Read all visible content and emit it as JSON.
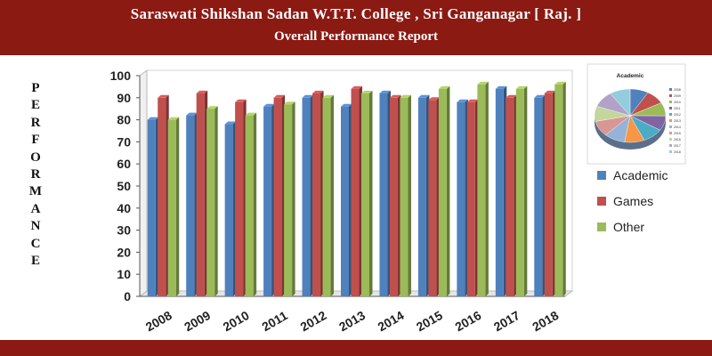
{
  "header": {
    "title": "Saraswati Shikshan Sadan W.T.T. College , Sri Ganganagar [ Raj. ]",
    "subtitle": "Overall Performance Report"
  },
  "side_label": [
    "P",
    "E",
    "R",
    "F",
    "O",
    "R",
    "M",
    "A",
    "N",
    "C",
    "E"
  ],
  "colors": {
    "header_bg": "#8b1a13",
    "academic": "#4f81bd",
    "games": "#c0504d",
    "other": "#9bbb59"
  },
  "chart_data": [
    {
      "type": "bar",
      "title": "",
      "xlabel": "",
      "ylabel": "",
      "categories": [
        "2008",
        "2009",
        "2010",
        "2011",
        "2012",
        "2013",
        "2014",
        "2015",
        "2016",
        "2017",
        "2018"
      ],
      "series": [
        {
          "name": "Academic",
          "color": "#4f81bd",
          "values": [
            80,
            82,
            78,
            86,
            90,
            86,
            92,
            90,
            88,
            94,
            90
          ]
        },
        {
          "name": "Games",
          "color": "#c0504d",
          "values": [
            90,
            92,
            88,
            90,
            92,
            94,
            90,
            89,
            88,
            90,
            92
          ]
        },
        {
          "name": "Other",
          "color": "#9bbb59",
          "values": [
            80,
            85,
            82,
            87,
            90,
            92,
            90,
            94,
            96,
            94,
            96
          ]
        }
      ],
      "ylim": [
        0,
        100
      ],
      "yticks": [
        0,
        10,
        20,
        30,
        40,
        50,
        60,
        70,
        80,
        90,
        100
      ],
      "legend": "right",
      "grid": false
    },
    {
      "type": "pie",
      "title": "Academic",
      "categories": [
        "2008",
        "2009",
        "2010",
        "2011",
        "2012",
        "2013",
        "2014",
        "2015",
        "2016",
        "2017",
        "2018"
      ],
      "values": [
        80,
        82,
        78,
        86,
        90,
        86,
        92,
        90,
        88,
        94,
        90
      ],
      "colors": [
        "#4f81bd",
        "#c0504d",
        "#9bbb59",
        "#8064a2",
        "#4bacc6",
        "#f79646",
        "#95b3d7",
        "#d99694",
        "#c3d69b",
        "#b3a2c7",
        "#93cddd"
      ],
      "legend": "right"
    }
  ]
}
